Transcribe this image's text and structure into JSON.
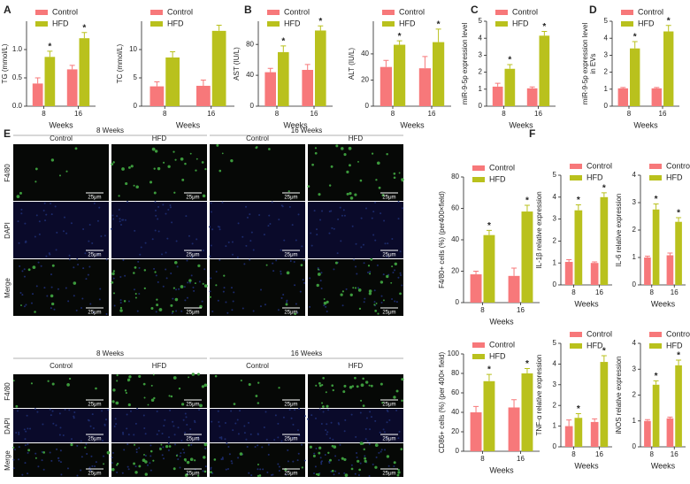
{
  "panel_labels": [
    "A",
    "B",
    "C",
    "D",
    "E",
    "F"
  ],
  "micrographs": {
    "timepoints": [
      "8 Weeks",
      "16 Weeks"
    ],
    "groups": [
      "Control",
      "HFD"
    ],
    "stains": [
      "F4/80",
      "DAPI",
      "Merge"
    ],
    "scale_bar": "25μm"
  },
  "chart_data": [
    {
      "type": "bar",
      "ylabel": "TG (mmol/L)",
      "xlabel": "Weeks",
      "categories": [
        "8",
        "16"
      ],
      "ylim": [
        0,
        1.5
      ],
      "yticks": [
        {
          "value": 0,
          "label": "0.0"
        },
        {
          "value": 0.5,
          "label": "0.5"
        },
        {
          "value": 1,
          "label": "1.0"
        }
      ],
      "series": [
        {
          "name": "Control",
          "color": "#f7787a",
          "values": [
            0.4,
            0.65
          ],
          "errors": [
            0.1,
            0.07
          ]
        },
        {
          "name": "HFD",
          "color": "#b9c11d",
          "values": [
            0.87,
            1.2
          ],
          "errors": [
            0.1,
            0.1
          ],
          "significance": [
            "*",
            "*"
          ]
        }
      ]
    },
    {
      "type": "bar",
      "ylabel": "TC (mmol/L)",
      "xlabel": "Weeks",
      "categories": [
        "8",
        "16"
      ],
      "ylim": [
        0,
        15
      ],
      "yticks": [
        0,
        5,
        10
      ],
      "series": [
        {
          "name": "Control",
          "color": "#f7787a",
          "values": [
            3.5,
            3.6
          ],
          "errors": [
            0.8,
            1
          ]
        },
        {
          "name": "HFD",
          "color": "#b9c11d",
          "values": [
            8.6,
            13.3
          ],
          "errors": [
            1,
            1
          ]
        }
      ]
    },
    {
      "type": "bar",
      "ylabel": "AST (IU/L)",
      "xlabel": "Weeks",
      "categories": [
        "8",
        "16"
      ],
      "ylim": [
        0,
        110
      ],
      "yticks": [
        0,
        40,
        80
      ],
      "series": [
        {
          "name": "Control",
          "color": "#f7787a",
          "values": [
            44,
            47
          ],
          "errors": [
            5,
            7
          ]
        },
        {
          "name": "HFD",
          "color": "#b9c11d",
          "values": [
            70,
            98
          ],
          "errors": [
            8,
            6
          ],
          "significance": [
            "*",
            "*"
          ]
        }
      ]
    },
    {
      "type": "bar",
      "ylabel": "ALT (IU/L)",
      "xlabel": "Weeks",
      "categories": [
        "8",
        "16"
      ],
      "ylim": [
        0,
        65
      ],
      "yticks": [
        0,
        20,
        40
      ],
      "series": [
        {
          "name": "Control",
          "color": "#f7787a",
          "values": [
            30,
            29
          ],
          "errors": [
            5,
            9
          ]
        },
        {
          "name": "HFD",
          "color": "#b9c11d",
          "values": [
            47,
            49
          ],
          "errors": [
            3,
            10
          ],
          "significance": [
            "*",
            "*"
          ]
        }
      ]
    },
    {
      "type": "bar",
      "ylabel": "miR-9-5p expression level",
      "xlabel": "Weeks",
      "categories": [
        "8",
        "16"
      ],
      "ylim": [
        0,
        5
      ],
      "yticks": [
        0,
        1,
        2,
        3,
        4,
        5
      ],
      "series": [
        {
          "name": "Control",
          "color": "#f7787a",
          "values": [
            1.15,
            1.05
          ],
          "errors": [
            0.2,
            0.08
          ]
        },
        {
          "name": "HFD",
          "color": "#b9c11d",
          "values": [
            2.2,
            4.15
          ],
          "errors": [
            0.25,
            0.25
          ],
          "significance": [
            "*",
            "*"
          ]
        }
      ]
    },
    {
      "type": "bar",
      "ylabel": [
        "miR-9-5p expression level",
        "in EVs"
      ],
      "xlabel": "Weeks",
      "categories": [
        "8",
        "16"
      ],
      "ylim": [
        0,
        5
      ],
      "yticks": [
        0,
        1,
        2,
        3,
        4,
        5
      ],
      "series": [
        {
          "name": "Control",
          "color": "#f7787a",
          "values": [
            1.05,
            1.05
          ],
          "errors": [
            0.05,
            0.05
          ]
        },
        {
          "name": "HFD",
          "color": "#b9c11d",
          "values": [
            3.4,
            4.4
          ],
          "errors": [
            0.4,
            0.35
          ],
          "significance": [
            "*",
            "*"
          ]
        }
      ]
    },
    {
      "type": "bar",
      "ylabel": "F4/80+ cells (%) (per400×field)",
      "xlabel": "Weeks",
      "categories": [
        "8",
        "16"
      ],
      "ylim": [
        0,
        80
      ],
      "yticks": [
        0,
        20,
        40,
        60,
        80
      ],
      "series": [
        {
          "name": "Control",
          "color": "#f7787a",
          "values": [
            18,
            17
          ],
          "errors": [
            2,
            5
          ]
        },
        {
          "name": "HFD",
          "color": "#b9c11d",
          "values": [
            43,
            58
          ],
          "errors": [
            3,
            4
          ],
          "significance": [
            "*",
            "*"
          ]
        }
      ]
    },
    {
      "type": "bar",
      "ylabel": "CD86+ cells (%) (per 400× field)",
      "xlabel": "Weeks",
      "categories": [
        "8",
        "16"
      ],
      "ylim": [
        0,
        100
      ],
      "yticks": [
        0,
        20,
        40,
        60,
        80,
        100
      ],
      "series": [
        {
          "name": "Control",
          "color": "#f7787a",
          "values": [
            40,
            45
          ],
          "errors": [
            6,
            8
          ]
        },
        {
          "name": "HFD",
          "color": "#b9c11d",
          "values": [
            72,
            80
          ],
          "errors": [
            7,
            5
          ],
          "significance": [
            "*",
            "*"
          ]
        }
      ]
    },
    {
      "type": "bar",
      "ylabel": "IL-1β relative expression",
      "xlabel": "Weeks",
      "categories": [
        "8",
        "16"
      ],
      "ylim": [
        0,
        5
      ],
      "yticks": [
        0,
        1,
        2,
        3,
        4,
        5
      ],
      "series": [
        {
          "name": "Control",
          "color": "#f7787a",
          "values": [
            1.05,
            1.0
          ],
          "errors": [
            0.1,
            0.05
          ]
        },
        {
          "name": "HFD",
          "color": "#b9c11d",
          "values": [
            3.4,
            4.0
          ],
          "errors": [
            0.25,
            0.2
          ],
          "significance": [
            "*",
            "*"
          ]
        }
      ]
    },
    {
      "type": "bar",
      "ylabel": "IL-6 relative expression",
      "xlabel": "Weeks",
      "categories": [
        "8",
        "16"
      ],
      "ylim": [
        0,
        4
      ],
      "yticks": [
        0,
        1,
        2,
        3,
        4
      ],
      "series": [
        {
          "name": "Control",
          "color": "#f7787a",
          "values": [
            1.0,
            1.08
          ],
          "errors": [
            0.05,
            0.08
          ]
        },
        {
          "name": "HFD",
          "color": "#b9c11d",
          "values": [
            2.75,
            2.3
          ],
          "errors": [
            0.2,
            0.15
          ],
          "significance": [
            "*",
            "*"
          ]
        }
      ]
    },
    {
      "type": "bar",
      "ylabel": "TNF-α relative expression",
      "xlabel": "Weeks",
      "categories": [
        "8",
        "16"
      ],
      "ylim": [
        0,
        5
      ],
      "yticks": [
        0,
        1,
        2,
        3,
        4,
        5
      ],
      "series": [
        {
          "name": "Control",
          "color": "#f7787a",
          "values": [
            1.0,
            1.2
          ],
          "errors": [
            0.3,
            0.15
          ]
        },
        {
          "name": "HFD",
          "color": "#b9c11d",
          "values": [
            1.4,
            4.1
          ],
          "errors": [
            0.2,
            0.3
          ],
          "significance": [
            "*",
            "*"
          ]
        }
      ]
    },
    {
      "type": "bar",
      "ylabel": "iNOS relative expression",
      "xlabel": "Weeks",
      "categories": [
        "8",
        "16"
      ],
      "ylim": [
        0,
        4
      ],
      "yticks": [
        0,
        1,
        2,
        3,
        4
      ],
      "series": [
        {
          "name": "Control",
          "color": "#f7787a",
          "values": [
            1.0,
            1.1
          ],
          "errors": [
            0.05,
            0.05
          ]
        },
        {
          "name": "HFD",
          "color": "#b9c11d",
          "values": [
            2.4,
            3.15
          ],
          "errors": [
            0.15,
            0.2
          ],
          "significance": [
            "*",
            "*"
          ]
        }
      ]
    }
  ]
}
